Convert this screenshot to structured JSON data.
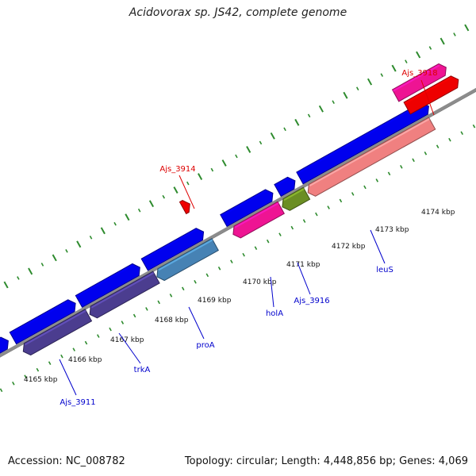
{
  "title": "Acidovorax sp. JS42, complete genome",
  "footer": {
    "accession": "Accession: NC_008782",
    "topology": "Topology: circular; Length: 4,448,856 bp; Genes: 4,069"
  },
  "colors": {
    "background": "#ffffff",
    "backbone": "#8c8c8c",
    "tick": "#2e8b2e",
    "label_red": "#dd0000",
    "label_blue": "#0000cc",
    "callout_line_blue": "#0000cc",
    "callout_line_red": "#dd0000"
  },
  "map": {
    "ticks": [
      {
        "label": "4165 kbp"
      },
      {
        "label": "4166 kbp"
      },
      {
        "label": "4167 kbp"
      },
      {
        "label": "4168 kbp"
      },
      {
        "label": "4169 kbp"
      },
      {
        "label": "4170 kbp"
      },
      {
        "label": "4171 kbp"
      },
      {
        "label": "4172 kbp"
      },
      {
        "label": "4173 kbp"
      },
      {
        "label": "4174 kbp"
      }
    ],
    "features": [
      {
        "name": "gene-blue-1",
        "color": "#0000ee",
        "strand": "plus"
      },
      {
        "name": "gene-blue-2",
        "color": "#0000ee",
        "strand": "plus"
      },
      {
        "name": "gene-blue-3",
        "color": "#0000ee",
        "strand": "plus"
      },
      {
        "name": "gene-blue-4",
        "color": "#0000ee",
        "strand": "plus"
      },
      {
        "name": "gene-blue-5",
        "color": "#0000ee",
        "strand": "plus"
      },
      {
        "name": "gene-blue-6",
        "color": "#0000ee",
        "strand": "plus"
      },
      {
        "name": "gene-blue-7",
        "color": "#0000ee",
        "strand": "plus"
      },
      {
        "name": "gene-blue-8",
        "color": "#0000ee",
        "strand": "plus"
      },
      {
        "name": "gene-blue-9",
        "color": "#0000ee",
        "strand": "plus"
      },
      {
        "name": "gene-purple-1",
        "color": "#4b3d8f",
        "strand": "minus"
      },
      {
        "name": "gene-purple-2",
        "color": "#4b3d8f",
        "strand": "minus"
      },
      {
        "name": "gene-steelblue",
        "color": "#4682b4",
        "strand": "minus"
      },
      {
        "name": "gene-pink-1",
        "color": "#ee1493",
        "strand": "minus"
      },
      {
        "name": "gene-olive",
        "color": "#6b8e23",
        "strand": "minus"
      },
      {
        "name": "gene-salmon",
        "color": "#f08080",
        "strand": "minus"
      },
      {
        "name": "gene-red-small",
        "color": "#ee0000",
        "strand": "plus"
      },
      {
        "name": "gene-pink-2",
        "color": "#ee1493",
        "strand": "plus"
      },
      {
        "name": "gene-red-2",
        "color": "#ee0000",
        "strand": "plus"
      }
    ],
    "labels": [
      {
        "text": "Ajs_3911",
        "color": "#0000cc"
      },
      {
        "text": "trkA",
        "color": "#0000cc"
      },
      {
        "text": "proA",
        "color": "#0000cc"
      },
      {
        "text": "holA",
        "color": "#0000cc"
      },
      {
        "text": "Ajs_3916",
        "color": "#0000cc"
      },
      {
        "text": "leuS",
        "color": "#0000cc"
      },
      {
        "text": "Ajs_3914",
        "color": "#dd0000"
      },
      {
        "text": "Ajs_3918",
        "color": "#dd0000"
      }
    ]
  }
}
